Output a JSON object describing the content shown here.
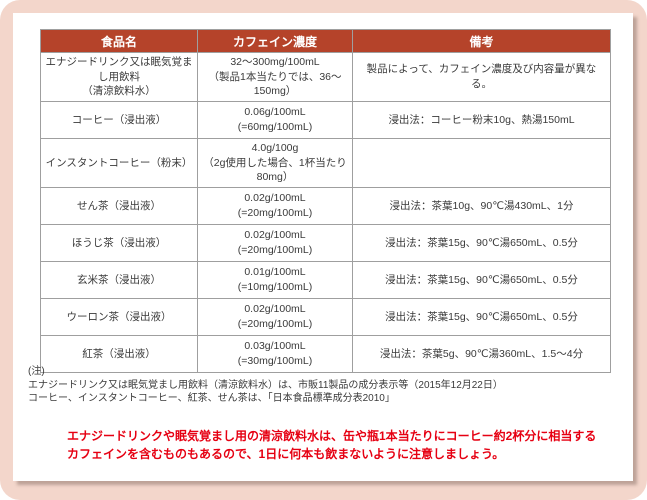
{
  "colors": {
    "frame_pink": "#f3d6cb",
    "header_red": "#b5432a",
    "warning_red": "#e60012",
    "border_gray": "#9f9f9f",
    "cell_text": "#3a3a3a"
  },
  "table": {
    "headers": [
      "食品名",
      "カフェイン濃度",
      "備考"
    ],
    "rows": [
      {
        "food1": "エナジードリンク又は眠気覚まし用飲料",
        "food2": "（清涼飲料水）",
        "conc1": "32～300mg/100mL",
        "conc2": "（製品1本当たりでは、36～150mg）",
        "remark": "製品によって、カフェイン濃度及び内容量が異なる。"
      },
      {
        "food1": "コーヒー（浸出液）",
        "food2": "",
        "conc1": "0.06g/100mL",
        "conc2": "(=60mg/100mL)",
        "remark": "浸出法：コーヒー粉末10g、熱湯150mL"
      },
      {
        "food1": "インスタントコーヒー（粉末）",
        "food2": "",
        "conc1": "4.0g/100g",
        "conc2": "（2g使用した場合、1杯当たり80mg）",
        "remark": ""
      },
      {
        "food1": "せん茶（浸出液）",
        "food2": "",
        "conc1": "0.02g/100mL",
        "conc2": "(=20mg/100mL)",
        "remark": "浸出法：茶葉10g、90℃湯430mL、1分"
      },
      {
        "food1": "ほうじ茶（浸出液）",
        "food2": "",
        "conc1": "0.02g/100mL",
        "conc2": "(=20mg/100mL)",
        "remark": "浸出法：茶葉15g、90℃湯650mL、0.5分"
      },
      {
        "food1": "玄米茶（浸出液）",
        "food2": "",
        "conc1": "0.01g/100mL",
        "conc2": "(=10mg/100mL)",
        "remark": "浸出法：茶葉15g、90℃湯650mL、0.5分"
      },
      {
        "food1": "ウーロン茶（浸出液）",
        "food2": "",
        "conc1": "0.02g/100mL",
        "conc2": "(=20mg/100mL)",
        "remark": "浸出法：茶葉15g、90℃湯650mL、0.5分"
      },
      {
        "food1": "紅茶（浸出液）",
        "food2": "",
        "conc1": "0.03g/100mL",
        "conc2": "(=30mg/100mL)",
        "remark": "浸出法：茶葉5g、90℃湯360mL、1.5～4分"
      }
    ]
  },
  "footnotes": {
    "label": "(注)",
    "line1": "エナジードリンク又は眠気覚まし用飲料（清涼飲料水）は、市販11製品の成分表示等（2015年12月22日）",
    "line2": "コーヒー、インスタントコーヒー、紅茶、せん茶は、「日本食品標準成分表2010」"
  },
  "warning": {
    "line1": "エナジードリンクや眠気覚まし用の清涼飲料水は、缶や瓶1本当たりにコーヒー約2杯分に相当する",
    "line2": "カフェインを含むものもあるので、1日に何本も飲まないように注意しましょう。"
  }
}
